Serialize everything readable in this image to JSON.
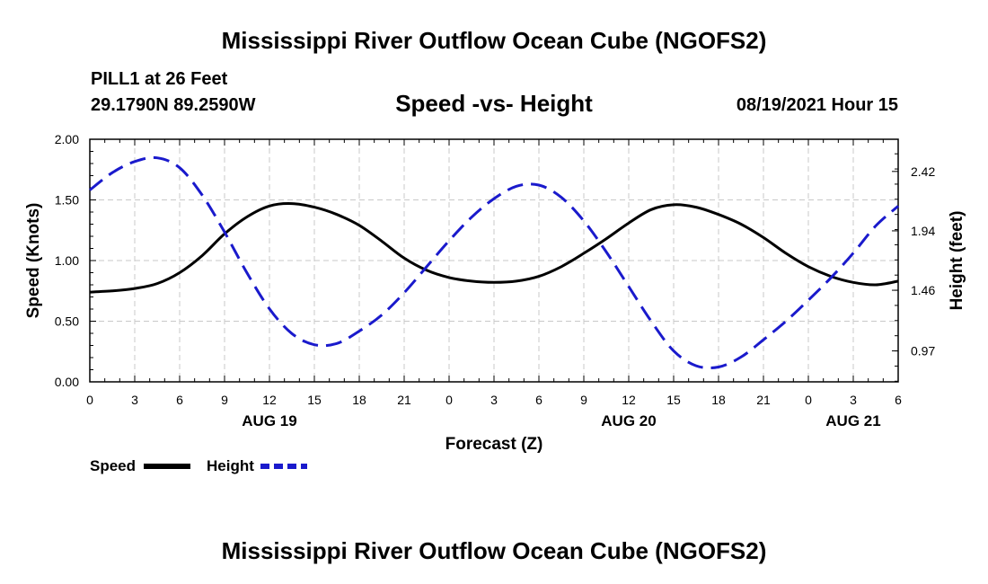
{
  "header": {
    "title": "Mississippi River Outflow Ocean Cube (NGOFS2)",
    "station": "PILL1 at 26 Feet",
    "coordinates": "29.1790N  89.2590W",
    "subtitle": "Speed -vs- Height",
    "datetime": "08/19/2021 Hour 15"
  },
  "footer": {
    "title": "Mississippi River Outflow Ocean Cube (NGOFS2)"
  },
  "legend": {
    "speed_label": "Speed",
    "height_label": "Height"
  },
  "colors": {
    "speed": "#000000",
    "height": "#1a1acc",
    "grid": "#c8c8c8"
  },
  "chart_data": {
    "type": "line",
    "xlabel": "Forecast (Z)",
    "xlim": [
      0,
      54
    ],
    "x_ticks": [
      0,
      3,
      6,
      9,
      12,
      15,
      18,
      21,
      24,
      27,
      30,
      33,
      36,
      39,
      42,
      45,
      48,
      51,
      54
    ],
    "x_tick_labels": [
      "0",
      "3",
      "6",
      "9",
      "12",
      "15",
      "18",
      "21",
      "0",
      "3",
      "6",
      "9",
      "12",
      "15",
      "18",
      "21",
      "0",
      "3",
      "6"
    ],
    "date_labels": [
      {
        "x": 12,
        "label": "AUG 19"
      },
      {
        "x": 36,
        "label": "AUG 20"
      },
      {
        "x": 51,
        "label": "AUG 21"
      }
    ],
    "y_left": {
      "label": "Speed (Knots)",
      "range": [
        0,
        2
      ],
      "ticks": [
        0,
        0.5,
        1.0,
        1.5,
        2.0
      ],
      "tick_labels": [
        "0.00",
        "0.50",
        "1.00",
        "1.50",
        "2.00"
      ]
    },
    "y_right": {
      "label": "Height (feet)",
      "range": [
        0.72,
        2.68
      ],
      "ticks": [
        0.97,
        1.46,
        1.94,
        2.42
      ],
      "tick_labels": [
        "0.97",
        "1.46",
        "1.94",
        "2.42"
      ]
    },
    "series": [
      {
        "name": "Speed",
        "axis": "left",
        "style": "solid",
        "x": [
          0,
          1.5,
          3,
          4.5,
          6,
          7.5,
          9,
          10.5,
          12,
          13.5,
          15,
          16.5,
          18,
          19.5,
          21,
          22.5,
          24,
          25.5,
          27,
          28.5,
          30,
          31.5,
          33,
          34.5,
          36,
          37.5,
          39,
          40.5,
          42,
          43.5,
          45,
          46.5,
          48,
          49.5,
          51,
          52.5,
          54
        ],
        "values": [
          0.74,
          0.75,
          0.77,
          0.81,
          0.9,
          1.04,
          1.22,
          1.36,
          1.45,
          1.47,
          1.44,
          1.38,
          1.29,
          1.16,
          1.02,
          0.92,
          0.86,
          0.83,
          0.82,
          0.83,
          0.87,
          0.95,
          1.06,
          1.18,
          1.31,
          1.42,
          1.46,
          1.44,
          1.38,
          1.3,
          1.19,
          1.06,
          0.95,
          0.87,
          0.82,
          0.8,
          0.83
        ]
      },
      {
        "name": "Height",
        "axis": "right",
        "style": "dashed",
        "x": [
          0,
          1.5,
          3,
          4.5,
          6,
          7.5,
          9,
          10.5,
          12,
          13.5,
          15,
          16.5,
          18,
          19.5,
          21,
          22.5,
          24,
          25.5,
          27,
          28.5,
          30,
          31.5,
          33,
          34.5,
          36,
          37.5,
          39,
          40.5,
          42,
          43.5,
          45,
          46.5,
          48,
          49.5,
          51,
          52.5,
          54
        ],
        "values": [
          2.27,
          2.41,
          2.5,
          2.53,
          2.45,
          2.23,
          1.93,
          1.6,
          1.31,
          1.11,
          1.02,
          1.03,
          1.13,
          1.26,
          1.44,
          1.65,
          1.86,
          2.05,
          2.2,
          2.3,
          2.31,
          2.21,
          2.02,
          1.77,
          1.49,
          1.21,
          0.97,
          0.85,
          0.84,
          0.92,
          1.06,
          1.21,
          1.38,
          1.56,
          1.76,
          1.98,
          2.14
        ]
      }
    ]
  }
}
